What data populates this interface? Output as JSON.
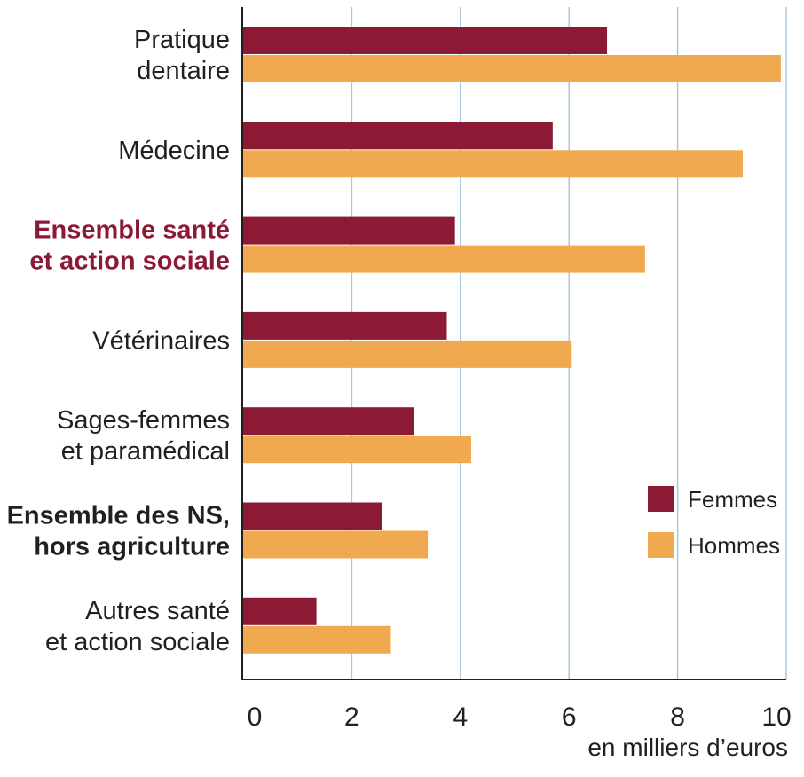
{
  "chart_data": {
    "type": "bar",
    "orientation": "horizontal",
    "categories": [
      [
        "Pratique",
        "dentaire"
      ],
      [
        "Médecine"
      ],
      [
        "Ensemble santé",
        "et action sociale"
      ],
      [
        "Vétérinaires"
      ],
      [
        "Sages-femmes",
        "et paramédical"
      ],
      [
        "Ensemble des NS,",
        "hors agriculture"
      ],
      [
        "Autres santé",
        "et action sociale"
      ]
    ],
    "category_styles": [
      "normal",
      "normal",
      "bold-red",
      "normal",
      "normal",
      "bold-dark",
      "normal"
    ],
    "series": [
      {
        "name": "Femmes",
        "color": "#8c1a35",
        "values": [
          6.7,
          5.7,
          3.9,
          3.75,
          3.15,
          2.55,
          1.35
        ]
      },
      {
        "name": "Hommes",
        "color": "#f0a94f",
        "values": [
          9.9,
          9.2,
          7.4,
          6.05,
          4.2,
          3.4,
          2.72
        ]
      }
    ],
    "xlim": [
      0,
      10
    ],
    "xticks": [
      "0",
      "2",
      "4",
      "6",
      "8",
      "10"
    ],
    "xlabel": "en milliers d’euros",
    "ylabel": "",
    "title": "",
    "grid": "vertical",
    "grid_color": "#a8c8dc",
    "legend_position": "right-middle"
  }
}
